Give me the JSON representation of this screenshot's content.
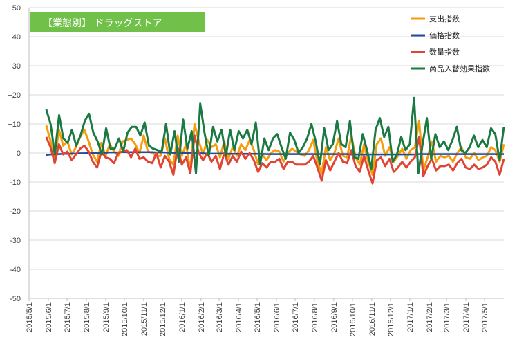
{
  "chart_data": {
    "type": "line",
    "title": "【業態別】 ドラッグストア",
    "title_bg": "#70C04A",
    "ylim": [
      -50,
      50
    ],
    "y_ticks": [
      {
        "v": 50,
        "label": "+50"
      },
      {
        "v": 40,
        "label": "+40"
      },
      {
        "v": 30,
        "label": "+30"
      },
      {
        "v": 20,
        "label": "+20"
      },
      {
        "v": 10,
        "label": "+10"
      },
      {
        "v": 0,
        "label": "0"
      },
      {
        "v": -10,
        "label": "-10"
      },
      {
        "v": -20,
        "label": "-20"
      },
      {
        "v": -30,
        "label": "-30"
      },
      {
        "v": -40,
        "label": "-40"
      },
      {
        "v": -50,
        "label": "-50"
      }
    ],
    "x_start": "2015-05-01",
    "x_end": "2017-06-01",
    "x_ticks": [
      "2015/5/1",
      "2015/6/1",
      "2015/7/1",
      "2015/8/1",
      "2015/9/1",
      "2015/10/1",
      "2015/11/1",
      "2015/12/1",
      "2016/1/1",
      "2016/2/1",
      "2016/3/1",
      "2016/4/1",
      "2016/5/1",
      "2016/6/1",
      "2016/7/1",
      "2016/8/1",
      "2016/9/1",
      "2016/10/1",
      "2016/11/1",
      "2016/12/1",
      "2017/1/1",
      "2017/2/1",
      "2017/3/1",
      "2017/4/1",
      "2017/5/1"
    ],
    "grid": {
      "horizontal": true,
      "vertical": false
    },
    "legend_position": "top-right",
    "series": [
      {
        "name": "支出指数",
        "color": "#F59D0D",
        "values": [
          9.5,
          4.2,
          -2.0,
          8.0,
          2.5,
          4.0,
          -0.5,
          2.0,
          5.5,
          8.0,
          4.0,
          -0.5,
          -3.0,
          3.5,
          -1.0,
          3.0,
          0.5,
          -1.0,
          4.0,
          4.5,
          5.0,
          3.0,
          0.0,
          6.0,
          0.5,
          0.0,
          -1.0,
          -1.0,
          5.0,
          -2.0,
          -4.0,
          6.0,
          -1.0,
          3.0,
          -6.0,
          10.0,
          4.0,
          -0.5,
          4.5,
          2.0,
          3.0,
          -1.5,
          4.0,
          -2.0,
          2.0,
          -1.0,
          3.0,
          1.0,
          4.5,
          1.0,
          -4.0,
          -0.5,
          -2.5,
          0.0,
          1.0,
          0.5,
          -3.0,
          0.0,
          1.5,
          0.5,
          -0.5,
          -1.0,
          1.0,
          4.5,
          -3.0,
          -7.0,
          2.0,
          -2.5,
          0.0,
          5.0,
          -1.0,
          -1.5,
          6.0,
          -1.5,
          -4.0,
          3.0,
          -3.0,
          -7.5,
          3.0,
          5.0,
          -1.0,
          2.0,
          -3.0,
          -1.0,
          1.5,
          -2.0,
          1.0,
          2.0,
          11.0,
          -6.0,
          -1.5,
          4.0,
          -3.0,
          -1.0,
          -1.5,
          -1.0,
          -3.0,
          0.0,
          2.0,
          -1.5,
          -2.0,
          0.0,
          -2.5,
          -1.5,
          -1.0,
          2.0,
          1.0,
          -3.0,
          3.0
        ]
      },
      {
        "name": "価格指数",
        "color": "#1F4EA0",
        "values": [
          -0.7,
          -0.5,
          -0.5,
          -0.4,
          -0.3,
          -0.3,
          -0.2,
          -0.2,
          -0.1,
          -0.1,
          0.0,
          0.0,
          0.0,
          0.1,
          0.1,
          0.2,
          0.2,
          0.2,
          0.3,
          0.3,
          0.3,
          0.3,
          0.3,
          0.3,
          0.3,
          0.3,
          0.2,
          0.2,
          0.2,
          0.1,
          0.1,
          0.0,
          0.0,
          0.0,
          0.0,
          -0.1,
          -0.1,
          -0.1,
          -0.2,
          -0.2,
          -0.2,
          -0.2,
          -0.2,
          -0.3,
          -0.3,
          -0.3,
          -0.3,
          -0.3,
          -0.3,
          -0.3,
          -0.3,
          -0.3,
          -0.4,
          -0.4,
          -0.4,
          -0.4,
          -0.4,
          -0.4,
          -0.4,
          -0.4,
          -0.4,
          -0.4,
          -0.4,
          -0.4,
          -0.4,
          -0.4,
          -0.4,
          -0.4,
          -0.4,
          -0.4,
          -0.4,
          -0.4,
          -0.5,
          -0.5,
          -0.5,
          -0.5,
          -0.5,
          -0.5,
          -0.5,
          -0.5,
          -0.5,
          -0.5,
          -0.5,
          -0.5,
          -0.5,
          -0.5,
          -0.5,
          -0.5,
          -0.4,
          -0.4,
          -0.4,
          -0.4,
          -0.4,
          -0.4,
          -0.4,
          -0.4,
          -0.4,
          -0.4,
          -0.4,
          -0.4,
          -0.4,
          -0.4,
          -0.4,
          -0.4,
          -0.4,
          -0.4,
          -0.4,
          -0.4,
          -0.4
        ]
      },
      {
        "name": "数量指数",
        "color": "#E04433",
        "values": [
          5.5,
          2.0,
          -3.5,
          3.0,
          -0.5,
          0.5,
          -2.5,
          -0.5,
          1.5,
          2.5,
          0.5,
          -3.0,
          -5.0,
          0.5,
          -1.5,
          -2.0,
          -3.5,
          0.0,
          0.5,
          1.0,
          -1.5,
          1.5,
          -2.0,
          -1.5,
          -3.0,
          -3.5,
          0.0,
          -5.0,
          -1.0,
          -3.0,
          -7.5,
          2.0,
          -4.0,
          -1.5,
          -7.0,
          6.0,
          0.0,
          -2.5,
          0.0,
          -3.0,
          -1.0,
          -5.5,
          0.0,
          -4.0,
          -1.0,
          -3.0,
          0.5,
          -2.0,
          0.0,
          -2.5,
          -6.5,
          -3.5,
          -5.0,
          -3.0,
          -3.0,
          -2.0,
          -5.5,
          -3.0,
          -3.0,
          -4.0,
          -4.0,
          -4.0,
          -3.0,
          -1.0,
          -5.0,
          -9.5,
          -2.5,
          -6.0,
          -3.0,
          0.0,
          -3.0,
          -3.5,
          1.0,
          -4.5,
          -6.5,
          -1.0,
          -6.0,
          -10.5,
          -2.5,
          -1.5,
          -4.5,
          -2.0,
          -6.5,
          -5.0,
          -3.0,
          -5.0,
          -3.0,
          -1.5,
          5.5,
          -8.0,
          -4.5,
          -2.0,
          -6.0,
          -4.5,
          -4.5,
          -4.0,
          -6.0,
          -3.5,
          -2.0,
          -5.0,
          -5.5,
          -4.0,
          -5.5,
          -5.0,
          -4.0,
          -1.5,
          -3.0,
          -7.5,
          -2.0
        ]
      },
      {
        "name": "商品入替効果指数",
        "color": "#1B7A43",
        "values": [
          15.0,
          10.0,
          -0.5,
          13.0,
          5.0,
          3.5,
          8.0,
          2.5,
          6.0,
          11.0,
          13.5,
          7.0,
          4.0,
          -0.5,
          8.5,
          1.5,
          1.5,
          5.0,
          0.5,
          7.0,
          9.0,
          9.0,
          6.0,
          10.5,
          2.5,
          1.5,
          1.0,
          0.5,
          10.0,
          -0.5,
          7.5,
          -3.0,
          11.5,
          1.5,
          7.5,
          -7.0,
          17.0,
          7.0,
          -1.0,
          9.0,
          4.0,
          8.0,
          -1.0,
          8.0,
          1.0,
          7.5,
          5.0,
          8.0,
          3.0,
          10.5,
          -4.0,
          5.0,
          1.0,
          5.0,
          6.5,
          2.0,
          -2.0,
          7.0,
          4.5,
          0.0,
          2.0,
          5.0,
          10.0,
          4.0,
          -4.0,
          8.5,
          1.0,
          3.0,
          11.0,
          3.0,
          2.0,
          11.0,
          -1.5,
          -2.0,
          6.5,
          1.0,
          -5.5,
          8.0,
          12.0,
          5.5,
          9.0,
          -3.0,
          -0.5,
          5.5,
          1.0,
          3.0,
          19.0,
          -7.0,
          3.0,
          12.0,
          -2.0,
          6.5,
          2.0,
          4.0,
          1.0,
          4.5,
          9.0,
          1.0,
          0.0,
          2.0,
          6.0,
          2.0,
          4.5,
          2.0,
          8.5,
          6.5,
          -2.5,
          9.0
        ]
      }
    ]
  }
}
